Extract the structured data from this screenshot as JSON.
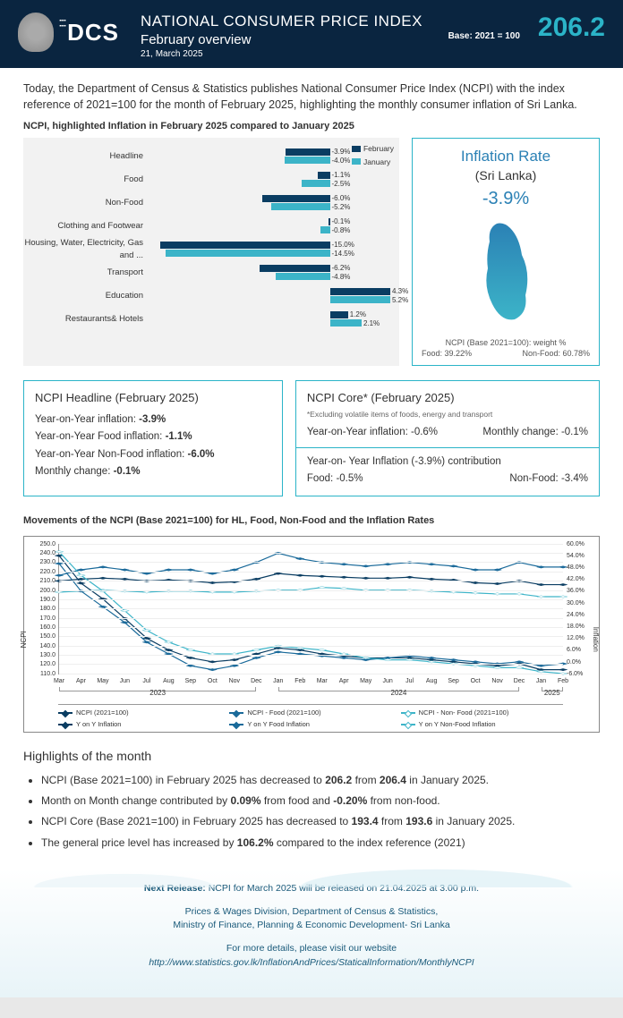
{
  "header": {
    "title": "NATIONAL CONSUMER PRICE INDEX",
    "subtitle": "February overview",
    "date": "21, March 2025",
    "base": "Base: 2021 = 100",
    "big_number": "206.2",
    "logo_text": "DCS"
  },
  "intro": "Today, the Department of Census & Statistics publishes National Consumer Price Index (NCPI) with the index reference of 2021=100 for the month of February 2025, highlighting the monthly consumer inflation of Sri Lanka.",
  "bar_chart": {
    "title": "NCPI, highlighted Inflation in February 2025 compared to January 2025",
    "legend_feb": "February",
    "legend_jan": "January",
    "feb_color": "#0a3d62",
    "jan_color": "#3cb4c8",
    "categories": [
      {
        "label": "Headline",
        "feb": -3.9,
        "jan": -4.0
      },
      {
        "label": "Food",
        "feb": -1.1,
        "jan": -2.5
      },
      {
        "label": "Non-Food",
        "feb": -6.0,
        "jan": -5.2
      },
      {
        "label": "Clothing and Footwear",
        "feb": -0.1,
        "jan": -0.8
      },
      {
        "label": "Housing, Water, Electricity, Gas and ...",
        "feb": -15.0,
        "jan": -14.5
      },
      {
        "label": "Transport",
        "feb": -6.2,
        "jan": -4.8
      },
      {
        "label": "Education",
        "feb": 4.3,
        "jan": 5.2
      },
      {
        "label": "Restaurants& Hotels",
        "feb": 1.2,
        "jan": 2.1
      }
    ],
    "scale_max": 16
  },
  "inflation_box": {
    "title": "Inflation Rate",
    "subtitle": "(Sri Lanka)",
    "value": "-3.9%",
    "map_color_top": "#2b81b5",
    "map_color_bottom": "#3cb4c8",
    "footer1": "NCPI (Base 2021=100): weight %",
    "footer2_left": "Food: 39.22%",
    "footer2_right": "Non-Food: 60.78%"
  },
  "headline_panel": {
    "title": "NCPI Headline (February 2025)",
    "l1": "Year-on-Year inflation: ",
    "v1": "-3.9%",
    "l2": "Year-on-Year Food inflation: ",
    "v2": "-1.1%",
    "l3": "Year-on-Year Non-Food inflation: ",
    "v3": "-6.0%",
    "l4": "Monthly change: ",
    "v4": "-0.1%"
  },
  "core_panel": {
    "title": "NCPI Core* (February 2025)",
    "sub": "*Excluding volatile items of foods, energy and transport",
    "l1": "Year-on-Year inflation: -0.6%",
    "r1": "Monthly change: -0.1%",
    "sep_title": "Year-on- Year Inflation (-3.9%) contribution",
    "l2": "Food: -0.5%",
    "r2": "Non-Food: -3.4%"
  },
  "line_chart": {
    "title": "Movements of the NCPI (Base 2021=100) for HL, Food, Non-Food and the Inflation Rates",
    "ylabel_left": "NCPI",
    "ylabel_right": "Inflation",
    "y_left": {
      "min": 110,
      "max": 250,
      "step": 10
    },
    "y_right": {
      "min": -6,
      "max": 60,
      "step": 6
    },
    "x_months": [
      "Mar",
      "Apr",
      "May",
      "Jun",
      "Jul",
      "Aug",
      "Sep",
      "Oct",
      "Nov",
      "Dec",
      "Jan",
      "Feb",
      "Mar",
      "Apr",
      "May",
      "Jun",
      "Jul",
      "Aug",
      "Sep",
      "Oct",
      "Nov",
      "Dec",
      "Jan",
      "Feb"
    ],
    "x_years": [
      {
        "label": "2023",
        "start": 0,
        "end": 9
      },
      {
        "label": "2024",
        "start": 10,
        "end": 21
      },
      {
        "label": "2025",
        "start": 22,
        "end": 23
      }
    ],
    "series": {
      "ncpi": {
        "label": "NCPI (2021=100)",
        "color": "#0a3d62",
        "marker": "closed",
        "data": [
          210,
          212,
          213,
          212,
          210,
          211,
          210,
          208,
          209,
          212,
          218,
          216,
          215,
          214,
          213,
          213,
          214,
          212,
          211,
          208,
          207,
          210,
          206,
          206
        ]
      },
      "ncpi_food": {
        "label": "NCPI - Food (2021=100)",
        "color": "#1a6a9a",
        "marker": "closed",
        "data": [
          216,
          222,
          225,
          222,
          218,
          222,
          222,
          218,
          222,
          230,
          240,
          234,
          230,
          228,
          226,
          228,
          230,
          228,
          226,
          222,
          222,
          230,
          225,
          225
        ]
      },
      "ncpi_nf": {
        "label": "NCPI - Non- Food (2021=100)",
        "color": "#3cb4c8",
        "marker": "open",
        "data": [
          198,
          199,
          200,
          199,
          198,
          199,
          199,
          198,
          198,
          199,
          200,
          200,
          203,
          202,
          200,
          200,
          200,
          199,
          198,
          197,
          196,
          196,
          193,
          193
        ]
      },
      "yoy": {
        "label": "Y on Y  Inflation",
        "color": "#0a3d62",
        "marker": "closed",
        "axis": "right",
        "data": [
          54,
          40,
          32,
          22,
          12,
          6,
          2,
          0,
          1,
          4,
          7,
          6,
          4,
          3,
          2,
          2,
          2,
          1,
          0,
          -1,
          -2,
          -1,
          -4,
          -4
        ]
      },
      "yoy_food": {
        "label": "Y on Y  Food Inflation",
        "color": "#1a6a9a",
        "marker": "closed",
        "axis": "right",
        "data": [
          50,
          36,
          28,
          20,
          10,
          4,
          -2,
          -4,
          -2,
          2,
          5,
          4,
          3,
          2,
          1,
          2,
          3,
          2,
          1,
          0,
          -1,
          0,
          -2,
          -1
        ]
      },
      "yoy_nf": {
        "label": "Y on Y Non-Food Inflation",
        "color": "#3cb4c8",
        "marker": "open",
        "axis": "right",
        "data": [
          56,
          44,
          36,
          26,
          16,
          10,
          6,
          4,
          4,
          6,
          8,
          7,
          6,
          4,
          2,
          1,
          1,
          0,
          -1,
          -2,
          -3,
          -3,
          -5,
          -6
        ]
      }
    }
  },
  "highlights": {
    "title": "Highlights of the month",
    "items": [
      {
        "pre": "NCPI (Base 2021=100) in February 2025 has decreased to ",
        "b1": "206.2",
        "mid": " from ",
        "b2": "206.4",
        "post": " in January 2025."
      },
      {
        "pre": "Month on Month change contributed by ",
        "b1": "0.09%",
        "mid": " from food and ",
        "b2": "-0.20%",
        "post": " from non-food."
      },
      {
        "pre": "NCPI Core (Base 2021=100) in February 2025 has decreased to ",
        "b1": "193.4",
        "mid": " from ",
        "b2": "193.6",
        "post": " in January 2025."
      },
      {
        "pre": "The general price level has increased by ",
        "b1": "106.2%",
        "mid": " compared to the index reference (2021)",
        "b2": "",
        "post": ""
      }
    ]
  },
  "footer": {
    "next_label": "Next Release:",
    "next": " NCPI for March 2025 will be released on 21.04.2025 at 3.00 p.m.",
    "org1": "Prices & Wages Division, Department of Census & Statistics,",
    "org2": "Ministry of Finance, Planning & Economic Development- Sri Lanka",
    "more": "For more details, please visit our website",
    "url": "http://www.statistics.gov.lk/InflationAndPrices/StaticalInformation/MonthlyNCPI"
  }
}
